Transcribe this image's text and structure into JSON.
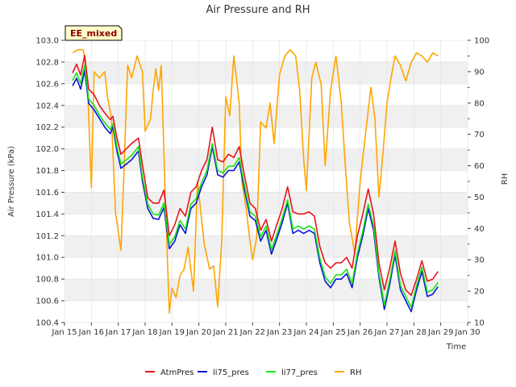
{
  "chart_data": {
    "type": "line",
    "title": "Air Pressure and RH",
    "badge": "EE_mixed",
    "xlabel": "Time",
    "ylabel": "Air Pressure (kPa)",
    "y2label": "RH",
    "xlim": [
      15,
      30
    ],
    "ylim": [
      100.4,
      103.0
    ],
    "y2lim": [
      10,
      100
    ],
    "x_ticks": [
      15,
      16,
      17,
      18,
      19,
      20,
      21,
      22,
      23,
      24,
      25,
      26,
      27,
      28,
      29,
      30
    ],
    "x_tick_labels": [
      "Jan 15",
      "Jan 16",
      "Jan 17",
      "Jan 18",
      "Jan 19",
      "Jan 20",
      "Jan 21",
      "Jan 22",
      "Jan 23",
      "Jan 24",
      "Jan 25",
      "Jan 26",
      "Jan 27",
      "Jan 28",
      "Jan 29",
      "Jan 30"
    ],
    "y_ticks": [
      "100.4",
      "100.6",
      "100.8",
      "101.0",
      "101.2",
      "101.4",
      "101.6",
      "101.8",
      "102.0",
      "102.2",
      "102.4",
      "102.6",
      "102.8",
      "103.0"
    ],
    "y2_ticks": [
      "10",
      "20",
      "30",
      "40",
      "50",
      "60",
      "70",
      "80",
      "90",
      "100"
    ],
    "grid": true,
    "legend_position": "bottom",
    "series": [
      {
        "name": "AtmPres",
        "axis": "left",
        "color": "#e8141c",
        "points": [
          [
            15.3,
            102.7
          ],
          [
            15.45,
            102.78
          ],
          [
            15.6,
            102.68
          ],
          [
            15.75,
            102.86
          ],
          [
            15.9,
            102.55
          ],
          [
            16.1,
            102.5
          ],
          [
            16.3,
            102.4
          ],
          [
            16.5,
            102.33
          ],
          [
            16.7,
            102.27
          ],
          [
            16.8,
            102.3
          ],
          [
            16.95,
            102.1
          ],
          [
            17.1,
            101.95
          ],
          [
            17.3,
            102.0
          ],
          [
            17.5,
            102.05
          ],
          [
            17.75,
            102.1
          ],
          [
            17.9,
            101.85
          ],
          [
            18.1,
            101.55
          ],
          [
            18.3,
            101.5
          ],
          [
            18.5,
            101.5
          ],
          [
            18.7,
            101.62
          ],
          [
            18.9,
            101.2
          ],
          [
            19.1,
            101.3
          ],
          [
            19.3,
            101.45
          ],
          [
            19.5,
            101.38
          ],
          [
            19.7,
            101.6
          ],
          [
            19.9,
            101.65
          ],
          [
            20.1,
            101.8
          ],
          [
            20.3,
            101.9
          ],
          [
            20.5,
            102.2
          ],
          [
            20.7,
            101.9
          ],
          [
            20.9,
            101.88
          ],
          [
            21.1,
            101.95
          ],
          [
            21.3,
            101.92
          ],
          [
            21.5,
            102.02
          ],
          [
            21.7,
            101.75
          ],
          [
            21.9,
            101.5
          ],
          [
            22.1,
            101.45
          ],
          [
            22.3,
            101.25
          ],
          [
            22.5,
            101.35
          ],
          [
            22.7,
            101.15
          ],
          [
            22.9,
            101.3
          ],
          [
            23.1,
            101.45
          ],
          [
            23.3,
            101.65
          ],
          [
            23.5,
            101.42
          ],
          [
            23.7,
            101.4
          ],
          [
            23.9,
            101.4
          ],
          [
            24.1,
            101.42
          ],
          [
            24.3,
            101.38
          ],
          [
            24.5,
            101.1
          ],
          [
            24.7,
            100.95
          ],
          [
            24.9,
            100.9
          ],
          [
            25.1,
            100.95
          ],
          [
            25.3,
            100.95
          ],
          [
            25.5,
            101.0
          ],
          [
            25.7,
            100.9
          ],
          [
            25.9,
            101.2
          ],
          [
            26.1,
            101.4
          ],
          [
            26.3,
            101.63
          ],
          [
            26.5,
            101.4
          ],
          [
            26.7,
            100.95
          ],
          [
            26.9,
            100.7
          ],
          [
            27.1,
            100.9
          ],
          [
            27.3,
            101.15
          ],
          [
            27.5,
            100.85
          ],
          [
            27.7,
            100.7
          ],
          [
            27.9,
            100.65
          ],
          [
            28.1,
            100.8
          ],
          [
            28.3,
            100.97
          ],
          [
            28.5,
            100.78
          ],
          [
            28.7,
            100.8
          ],
          [
            28.9,
            100.87
          ]
        ]
      },
      {
        "name": "li75_pres",
        "axis": "left",
        "color": "#0a14d8",
        "points": [
          [
            15.3,
            102.58
          ],
          [
            15.45,
            102.65
          ],
          [
            15.6,
            102.55
          ],
          [
            15.75,
            102.72
          ],
          [
            15.9,
            102.42
          ],
          [
            16.1,
            102.36
          ],
          [
            16.3,
            102.28
          ],
          [
            16.5,
            102.2
          ],
          [
            16.7,
            102.14
          ],
          [
            16.8,
            102.2
          ],
          [
            16.95,
            101.98
          ],
          [
            17.1,
            101.82
          ],
          [
            17.3,
            101.86
          ],
          [
            17.5,
            101.9
          ],
          [
            17.75,
            101.98
          ],
          [
            17.9,
            101.7
          ],
          [
            18.1,
            101.45
          ],
          [
            18.3,
            101.36
          ],
          [
            18.5,
            101.35
          ],
          [
            18.7,
            101.46
          ],
          [
            18.9,
            101.08
          ],
          [
            19.1,
            101.15
          ],
          [
            19.3,
            101.3
          ],
          [
            19.5,
            101.22
          ],
          [
            19.7,
            101.45
          ],
          [
            19.9,
            101.5
          ],
          [
            20.1,
            101.65
          ],
          [
            20.3,
            101.76
          ],
          [
            20.5,
            102.02
          ],
          [
            20.7,
            101.76
          ],
          [
            20.9,
            101.74
          ],
          [
            21.1,
            101.8
          ],
          [
            21.3,
            101.8
          ],
          [
            21.5,
            101.88
          ],
          [
            21.7,
            101.62
          ],
          [
            21.9,
            101.38
          ],
          [
            22.1,
            101.34
          ],
          [
            22.3,
            101.15
          ],
          [
            22.5,
            101.25
          ],
          [
            22.7,
            101.03
          ],
          [
            22.9,
            101.17
          ],
          [
            23.1,
            101.32
          ],
          [
            23.3,
            101.5
          ],
          [
            23.5,
            101.22
          ],
          [
            23.7,
            101.25
          ],
          [
            23.9,
            101.22
          ],
          [
            24.1,
            101.25
          ],
          [
            24.3,
            101.22
          ],
          [
            24.5,
            100.95
          ],
          [
            24.7,
            100.78
          ],
          [
            24.9,
            100.72
          ],
          [
            25.1,
            100.8
          ],
          [
            25.3,
            100.8
          ],
          [
            25.5,
            100.85
          ],
          [
            25.7,
            100.72
          ],
          [
            25.9,
            101.0
          ],
          [
            26.1,
            101.2
          ],
          [
            26.3,
            101.45
          ],
          [
            26.5,
            101.25
          ],
          [
            26.7,
            100.82
          ],
          [
            26.9,
            100.52
          ],
          [
            27.1,
            100.75
          ],
          [
            27.3,
            101.02
          ],
          [
            27.5,
            100.7
          ],
          [
            27.7,
            100.6
          ],
          [
            27.9,
            100.5
          ],
          [
            28.1,
            100.7
          ],
          [
            28.3,
            100.87
          ],
          [
            28.5,
            100.64
          ],
          [
            28.7,
            100.66
          ],
          [
            28.9,
            100.73
          ]
        ]
      },
      {
        "name": "li77_pres",
        "axis": "left",
        "color": "#14e614",
        "points": [
          [
            15.3,
            102.63
          ],
          [
            15.45,
            102.7
          ],
          [
            15.6,
            102.6
          ],
          [
            15.75,
            102.77
          ],
          [
            15.9,
            102.46
          ],
          [
            16.1,
            102.4
          ],
          [
            16.3,
            102.31
          ],
          [
            16.5,
            102.24
          ],
          [
            16.7,
            102.18
          ],
          [
            16.8,
            102.23
          ],
          [
            16.95,
            102.02
          ],
          [
            17.1,
            101.86
          ],
          [
            17.3,
            101.9
          ],
          [
            17.5,
            101.94
          ],
          [
            17.75,
            102.02
          ],
          [
            17.9,
            101.74
          ],
          [
            18.1,
            101.49
          ],
          [
            18.3,
            101.4
          ],
          [
            18.5,
            101.39
          ],
          [
            18.7,
            101.5
          ],
          [
            18.9,
            101.12
          ],
          [
            19.1,
            101.19
          ],
          [
            19.3,
            101.34
          ],
          [
            19.5,
            101.26
          ],
          [
            19.7,
            101.49
          ],
          [
            19.9,
            101.54
          ],
          [
            20.1,
            101.69
          ],
          [
            20.3,
            101.8
          ],
          [
            20.5,
            102.05
          ],
          [
            20.7,
            101.8
          ],
          [
            20.9,
            101.78
          ],
          [
            21.1,
            101.84
          ],
          [
            21.3,
            101.84
          ],
          [
            21.5,
            101.92
          ],
          [
            21.7,
            101.66
          ],
          [
            21.9,
            101.42
          ],
          [
            22.1,
            101.38
          ],
          [
            22.3,
            101.19
          ],
          [
            22.5,
            101.29
          ],
          [
            22.7,
            101.07
          ],
          [
            22.9,
            101.21
          ],
          [
            23.1,
            101.36
          ],
          [
            23.3,
            101.53
          ],
          [
            23.5,
            101.26
          ],
          [
            23.7,
            101.29
          ],
          [
            23.9,
            101.26
          ],
          [
            24.1,
            101.29
          ],
          [
            24.3,
            101.26
          ],
          [
            24.5,
            100.99
          ],
          [
            24.7,
            100.82
          ],
          [
            24.9,
            100.76
          ],
          [
            25.1,
            100.84
          ],
          [
            25.3,
            100.84
          ],
          [
            25.5,
            100.89
          ],
          [
            25.7,
            100.76
          ],
          [
            25.9,
            101.04
          ],
          [
            26.1,
            101.24
          ],
          [
            26.3,
            101.49
          ],
          [
            26.5,
            101.29
          ],
          [
            26.7,
            100.86
          ],
          [
            26.9,
            100.56
          ],
          [
            27.1,
            100.79
          ],
          [
            27.3,
            101.06
          ],
          [
            27.5,
            100.74
          ],
          [
            27.7,
            100.64
          ],
          [
            27.9,
            100.54
          ],
          [
            28.1,
            100.74
          ],
          [
            28.3,
            100.91
          ],
          [
            28.5,
            100.68
          ],
          [
            28.7,
            100.7
          ],
          [
            28.9,
            100.77
          ]
        ]
      },
      {
        "name": "RH",
        "axis": "right",
        "color": "#ffa500",
        "points": [
          [
            15.3,
            96
          ],
          [
            15.5,
            97
          ],
          [
            15.7,
            97
          ],
          [
            15.85,
            88
          ],
          [
            16.0,
            53
          ],
          [
            16.1,
            90
          ],
          [
            16.3,
            88
          ],
          [
            16.5,
            90
          ],
          [
            16.6,
            82
          ],
          [
            16.75,
            75
          ],
          [
            16.9,
            45
          ],
          [
            17.1,
            33
          ],
          [
            17.2,
            55
          ],
          [
            17.35,
            92
          ],
          [
            17.5,
            88
          ],
          [
            17.7,
            95
          ],
          [
            17.9,
            90
          ],
          [
            18.0,
            71
          ],
          [
            18.2,
            75
          ],
          [
            18.3,
            84
          ],
          [
            18.4,
            91
          ],
          [
            18.5,
            84
          ],
          [
            18.6,
            92
          ],
          [
            18.75,
            50
          ],
          [
            18.9,
            13
          ],
          [
            19.0,
            21
          ],
          [
            19.15,
            18
          ],
          [
            19.3,
            25
          ],
          [
            19.45,
            27
          ],
          [
            19.6,
            34
          ],
          [
            19.8,
            20
          ],
          [
            19.95,
            55
          ],
          [
            20.05,
            47
          ],
          [
            20.2,
            35
          ],
          [
            20.4,
            27
          ],
          [
            20.55,
            28
          ],
          [
            20.7,
            15
          ],
          [
            20.85,
            36
          ],
          [
            21.0,
            82
          ],
          [
            21.15,
            76
          ],
          [
            21.3,
            95
          ],
          [
            21.5,
            80
          ],
          [
            21.6,
            55
          ],
          [
            21.75,
            47
          ],
          [
            21.9,
            36
          ],
          [
            22.0,
            30
          ],
          [
            22.15,
            37
          ],
          [
            22.3,
            74
          ],
          [
            22.5,
            72
          ],
          [
            22.65,
            80
          ],
          [
            22.8,
            67
          ],
          [
            23.0,
            89
          ],
          [
            23.2,
            95
          ],
          [
            23.4,
            97
          ],
          [
            23.6,
            95
          ],
          [
            23.75,
            84
          ],
          [
            23.9,
            62
          ],
          [
            24.0,
            52
          ],
          [
            24.2,
            88
          ],
          [
            24.35,
            93
          ],
          [
            24.55,
            86
          ],
          [
            24.7,
            60
          ],
          [
            24.9,
            84
          ],
          [
            25.1,
            95
          ],
          [
            25.3,
            80
          ],
          [
            25.45,
            60
          ],
          [
            25.6,
            42
          ],
          [
            25.8,
            32
          ],
          [
            26.0,
            55
          ],
          [
            26.2,
            70
          ],
          [
            26.4,
            85
          ],
          [
            26.55,
            75
          ],
          [
            26.7,
            50
          ],
          [
            26.85,
            64
          ],
          [
            27.0,
            80
          ],
          [
            27.15,
            88
          ],
          [
            27.3,
            95
          ],
          [
            27.5,
            92
          ],
          [
            27.7,
            87
          ],
          [
            27.9,
            93
          ],
          [
            28.1,
            96
          ],
          [
            28.3,
            95
          ],
          [
            28.5,
            93
          ],
          [
            28.7,
            96
          ],
          [
            28.9,
            95
          ]
        ]
      }
    ]
  }
}
